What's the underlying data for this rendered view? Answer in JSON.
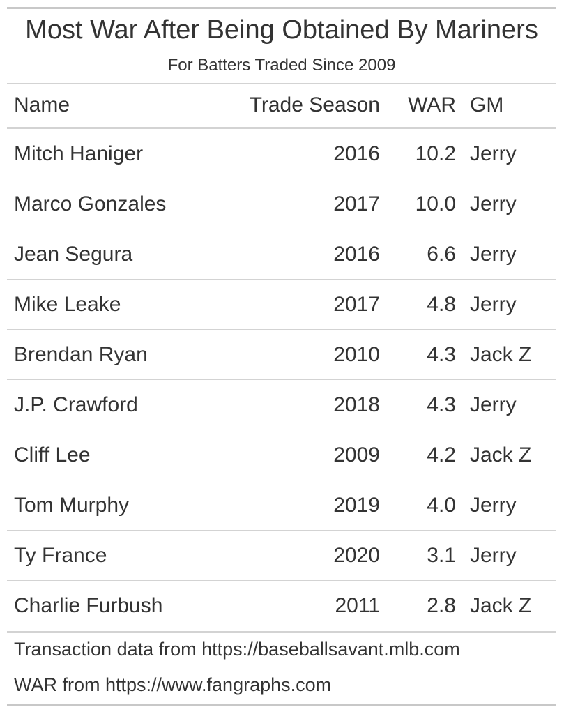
{
  "chart_data": {
    "type": "table",
    "title": "Most War After Being Obtained By Mariners",
    "subtitle": "For Batters Traded Since 2009",
    "columns": [
      "Name",
      "Trade Season",
      "WAR",
      "GM"
    ],
    "rows": [
      {
        "name": "Mitch Haniger",
        "season": "2016",
        "war": "10.2",
        "gm": "Jerry"
      },
      {
        "name": "Marco Gonzales",
        "season": "2017",
        "war": "10.0",
        "gm": "Jerry"
      },
      {
        "name": "Jean Segura",
        "season": "2016",
        "war": "6.6",
        "gm": "Jerry"
      },
      {
        "name": "Mike Leake",
        "season": "2017",
        "war": "4.8",
        "gm": "Jerry"
      },
      {
        "name": "Brendan Ryan",
        "season": "2010",
        "war": "4.3",
        "gm": "Jack Z"
      },
      {
        "name": "J.P. Crawford",
        "season": "2018",
        "war": "4.3",
        "gm": "Jerry"
      },
      {
        "name": "Cliff Lee",
        "season": "2009",
        "war": "4.2",
        "gm": "Jack Z"
      },
      {
        "name": "Tom Murphy",
        "season": "2019",
        "war": "4.0",
        "gm": "Jerry"
      },
      {
        "name": "Ty France",
        "season": "2020",
        "war": "3.1",
        "gm": "Jerry"
      },
      {
        "name": "Charlie Furbush",
        "season": "2011",
        "war": "2.8",
        "gm": "Jack Z"
      }
    ],
    "source_notes": [
      "Transaction data from https://baseballsavant.mlb.com",
      "WAR from https://www.fangraphs.com"
    ]
  },
  "colors": {
    "text": "#333333",
    "rule": "#d3d3d3",
    "outer_rule": "#c8c8c8",
    "background": "#ffffff"
  }
}
